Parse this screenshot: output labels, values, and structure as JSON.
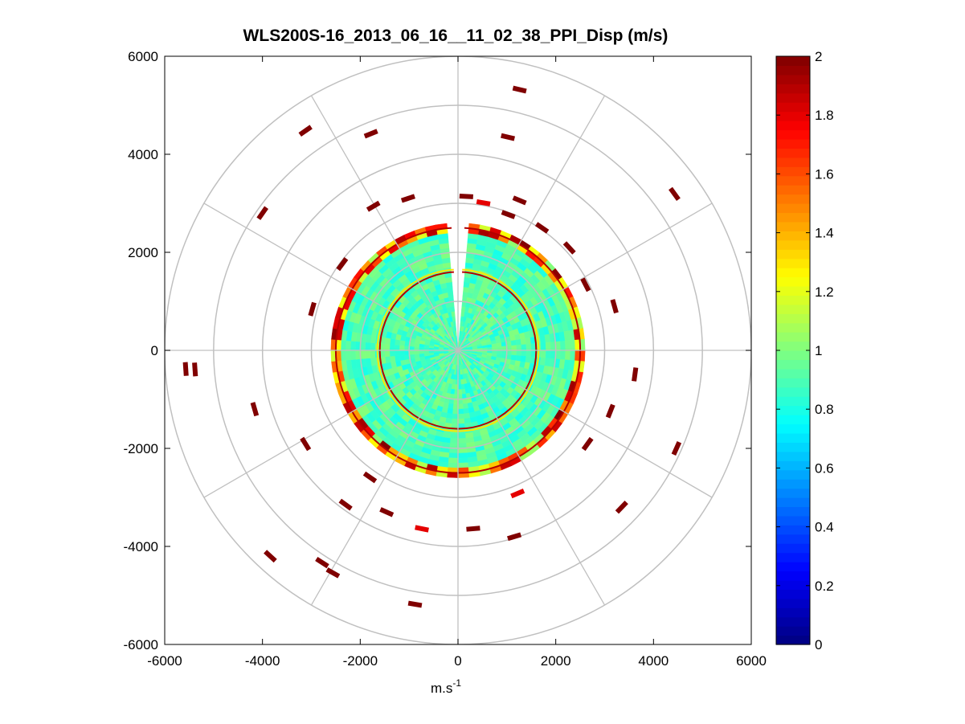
{
  "chart_data": {
    "type": "heatmap",
    "subtype": "polar-ppi",
    "title": "WLS200S-16_2013_06_16__11_02_38_PPI_Disp (m/s)",
    "xlabel": "m.s",
    "xlabel_sup": "-1",
    "ylabel": "",
    "xlim": [
      -6000,
      6000
    ],
    "ylim": [
      -6000,
      6000
    ],
    "xticks": [
      -6000,
      -4000,
      -2000,
      0,
      2000,
      4000,
      6000
    ],
    "yticks": [
      6000,
      4000,
      2000,
      0,
      -2000,
      -4000,
      -6000
    ],
    "polar_grid": {
      "radii": [
        1000,
        2000,
        3000,
        4000,
        5000,
        6000
      ],
      "spoke_angles_deg": [
        0,
        30,
        60,
        90,
        120,
        150,
        180,
        210,
        240,
        270,
        300,
        330
      ],
      "grid": true
    },
    "scan": {
      "dense_radius": 2600,
      "background_value": 0.9,
      "missing_sector_deg": [
        -3,
        3
      ],
      "rings": [
        {
          "radius": 1600,
          "value": 1.9
        },
        {
          "radius": 1650,
          "value": 1.3
        },
        {
          "radius": 2500,
          "value": 1.9
        }
      ]
    },
    "sparse_returns": [
      {
        "x": 1260,
        "y": 5320,
        "value": 2.0
      },
      {
        "x": -3120,
        "y": 4480,
        "value": 2.0
      },
      {
        "x": -1780,
        "y": 4420,
        "value": 2.0
      },
      {
        "x": 1020,
        "y": 4350,
        "value": 2.0
      },
      {
        "x": 4430,
        "y": 3190,
        "value": 2.0
      },
      {
        "x": 170,
        "y": 3140,
        "value": 2.0
      },
      {
        "x": 1260,
        "y": 3060,
        "value": 2.0
      },
      {
        "x": -1020,
        "y": 3100,
        "value": 2.0
      },
      {
        "x": -1730,
        "y": 2940,
        "value": 2.0
      },
      {
        "x": 520,
        "y": 3010,
        "value": 1.8
      },
      {
        "x": 1030,
        "y": 2770,
        "value": 2.0
      },
      {
        "x": 1720,
        "y": 2500,
        "value": 2.0
      },
      {
        "x": 2280,
        "y": 2090,
        "value": 2.0
      },
      {
        "x": -2370,
        "y": 1760,
        "value": 2.0
      },
      {
        "x": 2610,
        "y": 1340,
        "value": 2.0
      },
      {
        "x": 3200,
        "y": 900,
        "value": 2.0
      },
      {
        "x": -2980,
        "y": 840,
        "value": 2.0
      },
      {
        "x": -5570,
        "y": -380,
        "value": 2.0
      },
      {
        "x": -5380,
        "y": -390,
        "value": 2.0
      },
      {
        "x": 3620,
        "y": -490,
        "value": 2.0
      },
      {
        "x": -4160,
        "y": -1200,
        "value": 2.0
      },
      {
        "x": 3120,
        "y": -1240,
        "value": 2.0
      },
      {
        "x": 4470,
        "y": -2000,
        "value": 2.0
      },
      {
        "x": -3120,
        "y": -1910,
        "value": 2.0
      },
      {
        "x": 2650,
        "y": -1910,
        "value": 2.0
      },
      {
        "x": -1800,
        "y": -2590,
        "value": 2.0
      },
      {
        "x": 1220,
        "y": -2920,
        "value": 1.8
      },
      {
        "x": -2300,
        "y": -3150,
        "value": 2.0
      },
      {
        "x": 3350,
        "y": -3200,
        "value": 2.0
      },
      {
        "x": -1460,
        "y": -3300,
        "value": 2.0
      },
      {
        "x": -740,
        "y": -3640,
        "value": 1.8
      },
      {
        "x": 310,
        "y": -3640,
        "value": 2.0
      },
      {
        "x": 1150,
        "y": -3800,
        "value": 2.0
      },
      {
        "x": -3840,
        "y": -4200,
        "value": 2.0
      },
      {
        "x": -2780,
        "y": -4330,
        "value": 2.0
      },
      {
        "x": -2560,
        "y": -4540,
        "value": 2.0
      },
      {
        "x": -880,
        "y": -5180,
        "value": 2.0
      },
      {
        "x": -4000,
        "y": 2800,
        "value": 2.0
      }
    ],
    "colorbar": {
      "colormap": "jet",
      "min": 0,
      "max": 2,
      "ticks": [
        0,
        0.2,
        0.4,
        0.6,
        0.8,
        1,
        1.2,
        1.4,
        1.6,
        1.8,
        2
      ],
      "tick_labels": [
        "0",
        "0.2",
        "0.4",
        "0.6",
        "0.8",
        "1",
        "1.2",
        "1.4",
        "1.6",
        "1.8",
        "2"
      ],
      "levels": 64
    },
    "colors": {
      "grid": "#c0c0c0",
      "axes": "#000000",
      "background": "#ffffff"
    }
  }
}
